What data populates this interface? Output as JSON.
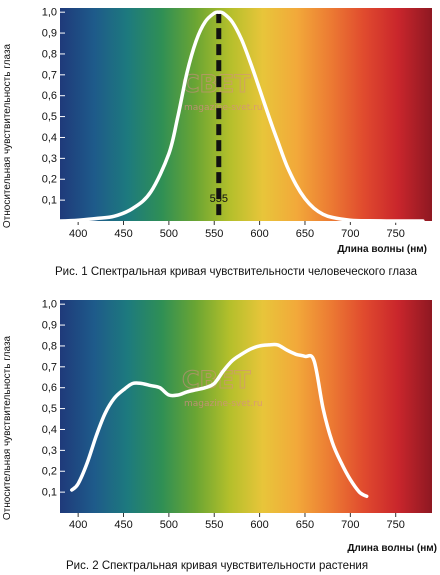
{
  "colors": {
    "spectrum": [
      "#1f3a7a",
      "#1e5a8a",
      "#1d7a7e",
      "#2f8f55",
      "#6aa533",
      "#b3bf2b",
      "#e8c53a",
      "#f2a93a",
      "#ec7b33",
      "#e04a2e",
      "#c9262c",
      "#8e1822"
    ],
    "curve": "#ffffff",
    "peak_line": "#111111",
    "watermark": "#d98a8a"
  },
  "watermark": {
    "logo": "СВЕТ",
    "site": "magazine-svet.ru"
  },
  "chart_data": [
    {
      "type": "line",
      "ylabel": "Относительная чувствительность глаза",
      "xlabel": "Длина волны (нм)",
      "caption": "Рис. 1 Спектральная кривая чувствительности человеческого глаза",
      "xlim": [
        380,
        790
      ],
      "ylim": [
        0,
        1.02
      ],
      "xticks": [
        "400",
        "450",
        "500",
        "550",
        "600",
        "650",
        "700",
        "750"
      ],
      "xtick_values": [
        400,
        450,
        500,
        550,
        600,
        650,
        700,
        750
      ],
      "yticks": [
        "0,1",
        "0,2",
        "0,3",
        "0,4",
        "0,5",
        "0,6",
        "0,7",
        "0,8",
        "0,9",
        "1,0"
      ],
      "ytick_values": [
        0.1,
        0.2,
        0.3,
        0.4,
        0.5,
        0.6,
        0.7,
        0.8,
        0.9,
        1.0
      ],
      "grid": false,
      "peak": {
        "x": 555,
        "label": "555"
      },
      "series": [
        {
          "x": [
            380,
            400,
            420,
            440,
            460,
            480,
            500,
            510,
            520,
            530,
            540,
            550,
            555,
            560,
            570,
            580,
            590,
            600,
            610,
            620,
            630,
            640,
            650,
            660,
            670,
            680,
            700,
            720,
            750,
            780
          ],
          "y": [
            0.0,
            0.004,
            0.012,
            0.023,
            0.06,
            0.139,
            0.323,
            0.503,
            0.71,
            0.862,
            0.954,
            0.995,
            1.0,
            0.995,
            0.952,
            0.87,
            0.757,
            0.631,
            0.503,
            0.381,
            0.265,
            0.175,
            0.107,
            0.061,
            0.032,
            0.017,
            0.004,
            0.001,
            0.0,
            0.0
          ]
        }
      ]
    },
    {
      "type": "line",
      "ylabel": "Относительная чувствительность глаза",
      "xlabel": "Длина волны (нм)",
      "caption": "Рис. 2 Спектральная кривая чувствительности растения",
      "xlim": [
        380,
        790
      ],
      "ylim": [
        0,
        1.02
      ],
      "xticks": [
        "400",
        "450",
        "500",
        "550",
        "600",
        "650",
        "700",
        "750"
      ],
      "xtick_values": [
        400,
        450,
        500,
        550,
        600,
        650,
        700,
        750
      ],
      "yticks": [
        "0,1",
        "0,2",
        "0,3",
        "0,4",
        "0,5",
        "0,6",
        "0,7",
        "0,8",
        "0,9",
        "1,0"
      ],
      "ytick_values": [
        0.1,
        0.2,
        0.3,
        0.4,
        0.5,
        0.6,
        0.7,
        0.8,
        0.9,
        1.0
      ],
      "grid": false,
      "series": [
        {
          "x": [
            393,
            400,
            410,
            420,
            430,
            440,
            450,
            460,
            470,
            480,
            490,
            500,
            510,
            520,
            530,
            540,
            550,
            560,
            570,
            580,
            590,
            600,
            610,
            620,
            630,
            640,
            650,
            660,
            670,
            680,
            690,
            700,
            710,
            718
          ],
          "y": [
            0.11,
            0.14,
            0.24,
            0.37,
            0.48,
            0.55,
            0.59,
            0.62,
            0.62,
            0.61,
            0.6,
            0.565,
            0.565,
            0.58,
            0.59,
            0.6,
            0.62,
            0.68,
            0.73,
            0.76,
            0.785,
            0.8,
            0.805,
            0.805,
            0.78,
            0.76,
            0.75,
            0.73,
            0.5,
            0.34,
            0.24,
            0.16,
            0.1,
            0.08
          ]
        }
      ]
    }
  ]
}
